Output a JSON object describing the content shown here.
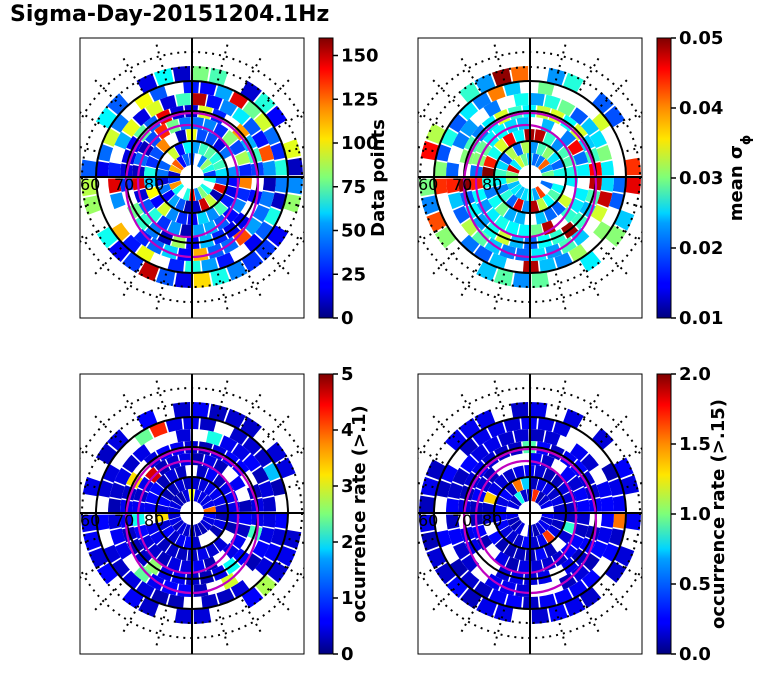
{
  "title": "Sigma-Day-20151204.1Hz",
  "chart_data": [
    {
      "type": "heatmap",
      "projection": "polar",
      "colormap": "jet",
      "latitude_labels": [
        "60",
        "70",
        "80"
      ],
      "colorbar": {
        "label": "Data points",
        "range": [
          0,
          160
        ],
        "ticks": [
          "0",
          "25",
          "50",
          "75",
          "100",
          "125",
          "150"
        ]
      }
    },
    {
      "type": "heatmap",
      "projection": "polar",
      "colormap": "jet",
      "latitude_labels": [
        "60",
        "70",
        "80"
      ],
      "colorbar": {
        "label": "mean σ",
        "label_sub": "ϕ",
        "range": [
          0.01,
          0.05
        ],
        "ticks": [
          "0.01",
          "0.02",
          "0.03",
          "0.04",
          "0.05"
        ]
      }
    },
    {
      "type": "heatmap",
      "projection": "polar",
      "colormap": "jet",
      "latitude_labels": [
        "60",
        "70",
        "80"
      ],
      "colorbar": {
        "label": "occurrence rate (>.1)",
        "range": [
          0,
          5
        ],
        "ticks": [
          "0",
          "1",
          "2",
          "3",
          "4",
          "5"
        ]
      }
    },
    {
      "type": "heatmap",
      "projection": "polar",
      "colormap": "jet",
      "latitude_labels": [
        "60",
        "70",
        "80"
      ],
      "colorbar": {
        "label": "occurrence rate (>.15)",
        "range": [
          0,
          2
        ],
        "ticks": [
          "0.0",
          "0.5",
          "1.0",
          "1.5",
          "2.0"
        ]
      }
    }
  ]
}
